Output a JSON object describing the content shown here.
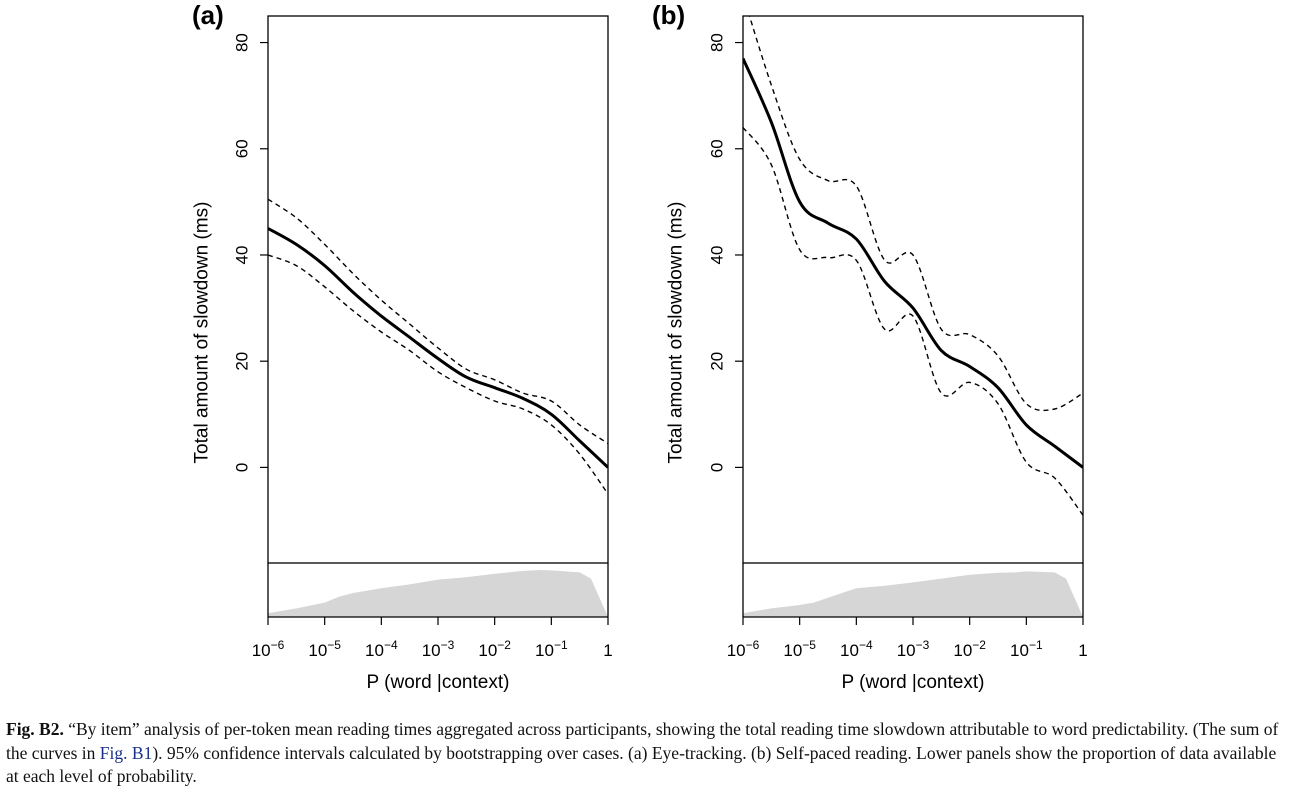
{
  "figure": {
    "caption": {
      "label": "Fig. B2.",
      "text_1": " “By item” analysis of per-token mean reading times aggregated across participants, showing the total reading time slowdown attributable to word predictability. (The sum of the curves in ",
      "ref": "Fig. B1",
      "text_2": "). 95% confidence intervals calculated by bootstrapping over cases. (a) Eye-tracking. (b) Self-paced reading. Lower panels show the proportion of data available at each level of probability."
    }
  },
  "chart_data": [
    {
      "type": "line",
      "panel_label": "(a)",
      "title": "",
      "xlabel": "P (word |context)",
      "ylabel": "Total amount of slowdown (ms)",
      "x_scale": "log10",
      "xlim": [
        1e-06,
        1
      ],
      "ylim": [
        -18,
        85
      ],
      "y_ticks": [
        0,
        20,
        40,
        60,
        80
      ],
      "x_ticks": [
        {
          "value": 1e-06,
          "base": "10",
          "exp": "−6"
        },
        {
          "value": 1e-05,
          "base": "10",
          "exp": "−5"
        },
        {
          "value": 0.0001,
          "base": "10",
          "exp": "−4"
        },
        {
          "value": 0.001,
          "base": "10",
          "exp": "−3"
        },
        {
          "value": 0.01,
          "base": "10",
          "exp": "−2"
        },
        {
          "value": 0.1,
          "base": "10",
          "exp": "−1"
        },
        {
          "value": 1,
          "base": "1",
          "exp": ""
        }
      ],
      "x_log10": [
        -6,
        -5.5,
        -5,
        -4.5,
        -4,
        -3.5,
        -3,
        -2.5,
        -2,
        -1.5,
        -1,
        -0.5,
        0
      ],
      "series": [
        {
          "style": "solid",
          "values": [
            45,
            42,
            38,
            33,
            28.5,
            24.5,
            20.5,
            17,
            15,
            13,
            10,
            5,
            0
          ]
        },
        {
          "style": "dashed",
          "values": [
            50.5,
            47,
            42,
            36.5,
            31.5,
            27,
            22.5,
            18.5,
            16.5,
            14,
            12.5,
            8,
            4.5
          ]
        },
        {
          "style": "dashed",
          "values": [
            40,
            38,
            34,
            29.5,
            25.5,
            22,
            18,
            15,
            12.5,
            11,
            8,
            2.5,
            -5
          ]
        }
      ],
      "density": {
        "x_log10": [
          -6,
          -5.5,
          -5,
          -4.75,
          -4.5,
          -4,
          -3.5,
          -3,
          -2.5,
          -2,
          -1.5,
          -1.2,
          -1,
          -0.5,
          -0.3,
          0
        ],
        "values": [
          0.08,
          0.18,
          0.3,
          0.42,
          0.5,
          0.6,
          0.68,
          0.78,
          0.83,
          0.9,
          0.96,
          0.98,
          0.97,
          0.93,
          0.8,
          0.0
        ]
      }
    },
    {
      "type": "line",
      "panel_label": "(b)",
      "title": "",
      "xlabel": "P (word |context)",
      "ylabel": "Total amount of slowdown (ms)",
      "x_scale": "log10",
      "xlim": [
        1e-06,
        1
      ],
      "ylim": [
        -18,
        85
      ],
      "y_ticks": [
        0,
        20,
        40,
        60,
        80
      ],
      "x_ticks": [
        {
          "value": 1e-06,
          "base": "10",
          "exp": "−6"
        },
        {
          "value": 1e-05,
          "base": "10",
          "exp": "−5"
        },
        {
          "value": 0.0001,
          "base": "10",
          "exp": "−4"
        },
        {
          "value": 0.001,
          "base": "10",
          "exp": "−3"
        },
        {
          "value": 0.01,
          "base": "10",
          "exp": "−2"
        },
        {
          "value": 0.1,
          "base": "10",
          "exp": "−1"
        },
        {
          "value": 1,
          "base": "1",
          "exp": ""
        }
      ],
      "x_log10": [
        -6,
        -5.5,
        -5,
        -4.5,
        -4,
        -3.5,
        -3,
        -2.5,
        -2,
        -1.5,
        -1,
        -0.5,
        0
      ],
      "series": [
        {
          "style": "solid",
          "values": [
            77,
            65,
            50,
            46,
            43,
            35,
            30,
            22,
            19,
            15,
            8,
            4,
            0
          ]
        },
        {
          "style": "dashed",
          "values": [
            89,
            72,
            58,
            54,
            53,
            39,
            40,
            26,
            25,
            21,
            12,
            11,
            14
          ]
        },
        {
          "style": "dashed",
          "values": [
            64,
            57,
            41,
            39.5,
            39,
            26,
            28.5,
            14,
            16,
            12,
            1,
            -2,
            -9
          ]
        }
      ],
      "density": {
        "x_log10": [
          -6,
          -5.5,
          -5,
          -4.75,
          -4.5,
          -4,
          -3.5,
          -3,
          -2.5,
          -2,
          -1.5,
          -1.2,
          -1,
          -0.5,
          -0.3,
          0
        ],
        "values": [
          0.08,
          0.18,
          0.25,
          0.3,
          0.4,
          0.6,
          0.65,
          0.72,
          0.8,
          0.88,
          0.92,
          0.93,
          0.95,
          0.93,
          0.8,
          0.0
        ]
      }
    }
  ]
}
